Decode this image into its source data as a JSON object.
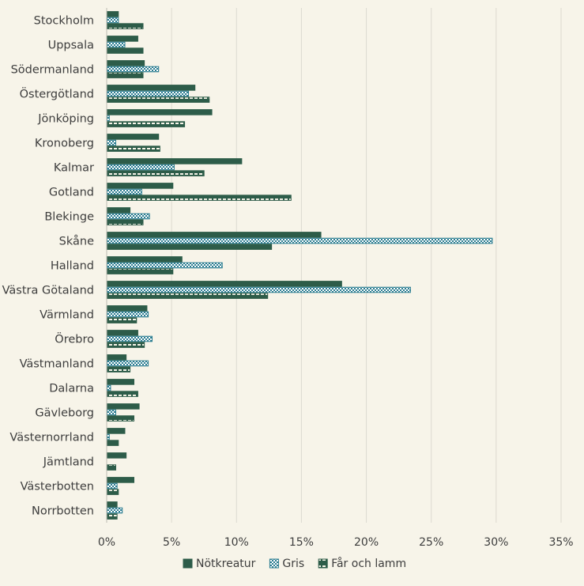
{
  "chart_data": {
    "type": "bar",
    "orientation": "horizontal",
    "title": "",
    "xlabel": "",
    "ylabel": "",
    "xlim": [
      0,
      0.35
    ],
    "x_ticks": [
      0,
      0.05,
      0.1,
      0.15,
      0.2,
      0.25,
      0.3,
      0.35
    ],
    "x_tick_labels": [
      "0%",
      "5%",
      "10%",
      "15%",
      "20%",
      "25%",
      "30%",
      "35%"
    ],
    "grid": "vertical",
    "legend_position": "bottom-center",
    "categories": [
      "Stockholm",
      "Uppsala",
      "Södermanland",
      "Östergötland",
      "Jönköping",
      "Kronoberg",
      "Kalmar",
      "Gotland",
      "Blekinge",
      "Skåne",
      "Halland",
      "Västra Götaland",
      "Värmland",
      "Örebro",
      "Västmanland",
      "Dalarna",
      "Gävleborg",
      "Västernorrland",
      "Jämtland",
      "Västerbotten",
      "Norrbotten"
    ],
    "series": [
      {
        "name": "Nötkreatur",
        "pattern": "solid",
        "color": "#2d5c49",
        "values": [
          0.009,
          0.024,
          0.029,
          0.068,
          0.081,
          0.04,
          0.104,
          0.051,
          0.018,
          0.165,
          0.058,
          0.181,
          0.031,
          0.024,
          0.015,
          0.021,
          0.025,
          0.014,
          0.015,
          0.021,
          0.008
        ]
      },
      {
        "name": "Gris",
        "pattern": "checker",
        "color": "#2a7c90",
        "values": [
          0.009,
          0.014,
          0.04,
          0.063,
          0.002,
          0.007,
          0.052,
          0.027,
          0.033,
          0.297,
          0.089,
          0.234,
          0.032,
          0.035,
          0.032,
          0.003,
          0.007,
          0.002,
          0.0,
          0.008,
          0.012
        ]
      },
      {
        "name": "Får och lamm",
        "pattern": "dashed",
        "color": "#2d5c49",
        "values": [
          0.028,
          0.028,
          0.028,
          0.079,
          0.06,
          0.041,
          0.075,
          0.142,
          0.028,
          0.127,
          0.051,
          0.124,
          0.023,
          0.029,
          0.018,
          0.024,
          0.021,
          0.009,
          0.007,
          0.009,
          0.008
        ]
      }
    ]
  }
}
